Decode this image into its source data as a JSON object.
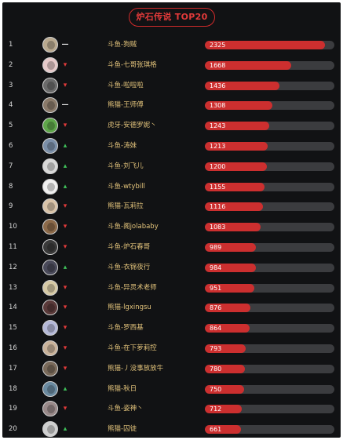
{
  "title": "炉石传说 TOP20",
  "scale_max": 2500,
  "colors": {
    "up": "#3fc05a",
    "down": "#e03a3a",
    "same": "#e8e8e8",
    "bar": "#cc2f2f",
    "track": "#3b3c3f"
  },
  "trend_symbols": {
    "up": "▴",
    "down": "▾",
    "same": "—"
  },
  "rows": [
    {
      "rank": "1",
      "name": "斗鱼-狗贼",
      "value": 2325,
      "value_text": "2325",
      "trend": "same",
      "avatar": "#b9a98f"
    },
    {
      "rank": "2",
      "name": "斗鱼-七哥张琪格",
      "value": 1668,
      "value_text": "1668",
      "trend": "down",
      "avatar": "#e5c9c9"
    },
    {
      "rank": "3",
      "name": "斗鱼-啦啦啦",
      "value": 1436,
      "value_text": "1436",
      "trend": "down",
      "avatar": "#6b6b6b"
    },
    {
      "rank": "4",
      "name": "熊猫-王师傅",
      "value": 1308,
      "value_text": "1308",
      "trend": "same",
      "avatar": "#8a7a6a"
    },
    {
      "rank": "5",
      "name": "虎牙-安德罗妮丶",
      "value": 1243,
      "value_text": "1243",
      "trend": "down",
      "avatar": "#5fa64a"
    },
    {
      "rank": "6",
      "name": "斗鱼-涛妹",
      "value": 1213,
      "value_text": "1213",
      "trend": "up",
      "avatar": "#7b8fa8"
    },
    {
      "rank": "7",
      "name": "斗鱼-刘飞儿",
      "value": 1200,
      "value_text": "1200",
      "trend": "up",
      "avatar": "#d8d8d8"
    },
    {
      "rank": "8",
      "name": "斗鱼-wtybill",
      "value": 1155,
      "value_text": "1155",
      "trend": "up",
      "avatar": "#f0f0f0"
    },
    {
      "rank": "9",
      "name": "熊猫-瓦莉拉",
      "value": 1116,
      "value_text": "1116",
      "trend": "down",
      "avatar": "#d9c3a8"
    },
    {
      "rank": "10",
      "name": "斗鱼-阁jolababy",
      "value": 1083,
      "value_text": "1083",
      "trend": "down",
      "avatar": "#8c6a4a"
    },
    {
      "rank": "11",
      "name": "斗鱼-炉石春哥",
      "value": 989,
      "value_text": "989",
      "trend": "down",
      "avatar": "#3a3a3a"
    },
    {
      "rank": "12",
      "name": "斗鱼-衣锦夜行",
      "value": 984,
      "value_text": "984",
      "trend": "up",
      "avatar": "#4a4a5a"
    },
    {
      "rank": "13",
      "name": "斗鱼-异灵术老师",
      "value": 951,
      "value_text": "951",
      "trend": "down",
      "avatar": "#d6c9a5"
    },
    {
      "rank": "14",
      "name": "熊猫-lgxingsu",
      "value": 876,
      "value_text": "876",
      "trend": "down",
      "avatar": "#5a3a3a"
    },
    {
      "rank": "15",
      "name": "斗鱼-罗西基",
      "value": 864,
      "value_text": "864",
      "trend": "down",
      "avatar": "#b5b9d8"
    },
    {
      "rank": "16",
      "name": "斗鱼-在下萝莉控",
      "value": 793,
      "value_text": "793",
      "trend": "down",
      "avatar": "#c9b29a"
    },
    {
      "rank": "17",
      "name": "熊猫-丿没事放放牛",
      "value": 780,
      "value_text": "780",
      "trend": "down",
      "avatar": "#7a6a5a"
    },
    {
      "rank": "18",
      "name": "熊猫-秋日",
      "value": 750,
      "value_text": "750",
      "trend": "up",
      "avatar": "#6a8aa0"
    },
    {
      "rank": "19",
      "name": "斗鱼-姿神丶",
      "value": 712,
      "value_text": "712",
      "trend": "down",
      "avatar": "#9a8a8a"
    },
    {
      "rank": "20",
      "name": "熊猫-囚徒",
      "value": 661,
      "value_text": "661",
      "trend": "up",
      "avatar": "#cfcfcf"
    }
  ]
}
